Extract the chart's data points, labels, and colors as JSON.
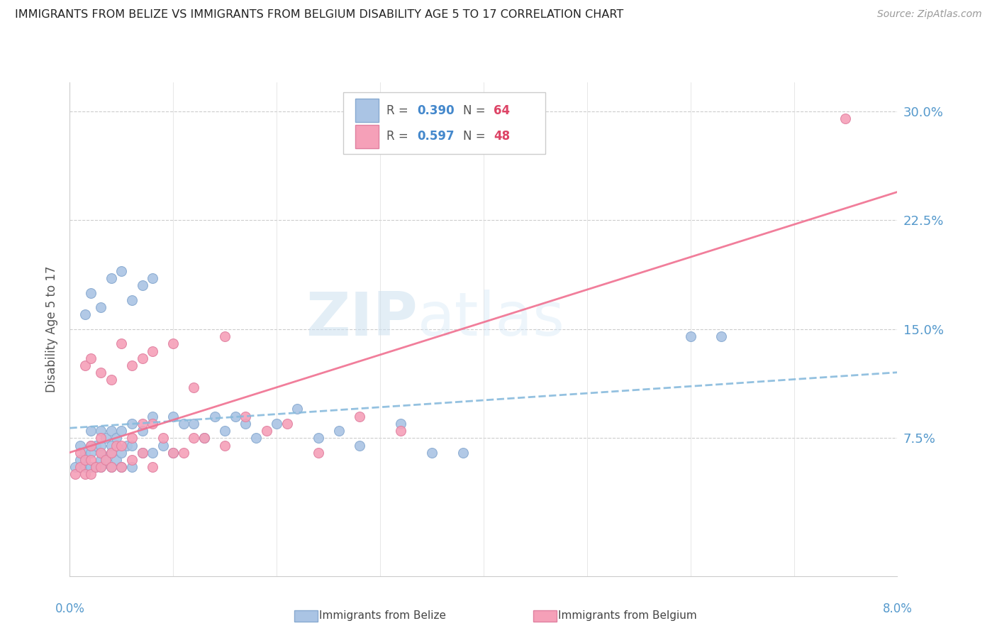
{
  "title": "IMMIGRANTS FROM BELIZE VS IMMIGRANTS FROM BELGIUM DISABILITY AGE 5 TO 17 CORRELATION CHART",
  "source": "Source: ZipAtlas.com",
  "ylabel": "Disability Age 5 to 17",
  "xmin": 0.0,
  "xmax": 0.08,
  "ymin": -0.02,
  "ymax": 0.32,
  "belize_color": "#aac4e4",
  "belgium_color": "#f5a0b8",
  "belize_line_color": "#88bbdd",
  "belgium_line_color": "#f07090",
  "belize_R": 0.39,
  "belize_N": 64,
  "belgium_R": 0.597,
  "belgium_N": 48,
  "legend_R_color": "#4488cc",
  "legend_N_color": "#dd4466",
  "yticks": [
    0.0,
    0.075,
    0.15,
    0.225,
    0.3
  ],
  "yticklabels": [
    "",
    "7.5%",
    "15.0%",
    "22.5%",
    "30.0%"
  ],
  "xtick_labels_pos": [
    0.0,
    0.08
  ],
  "xtick_labels": [
    "0.0%",
    "8.0%"
  ],
  "belize_x": [
    0.0005,
    0.001,
    0.001,
    0.0015,
    0.0015,
    0.002,
    0.002,
    0.002,
    0.002,
    0.0025,
    0.0025,
    0.003,
    0.003,
    0.003,
    0.003,
    0.003,
    0.0035,
    0.0035,
    0.004,
    0.004,
    0.004,
    0.004,
    0.0045,
    0.0045,
    0.005,
    0.005,
    0.005,
    0.0055,
    0.006,
    0.006,
    0.006,
    0.007,
    0.007,
    0.008,
    0.008,
    0.009,
    0.01,
    0.01,
    0.011,
    0.012,
    0.013,
    0.014,
    0.015,
    0.016,
    0.017,
    0.018,
    0.02,
    0.022,
    0.024,
    0.026,
    0.028,
    0.032,
    0.035,
    0.038,
    0.0015,
    0.002,
    0.003,
    0.004,
    0.005,
    0.006,
    0.007,
    0.008,
    0.06,
    0.063
  ],
  "belize_y": [
    0.055,
    0.06,
    0.07,
    0.055,
    0.065,
    0.055,
    0.065,
    0.07,
    0.08,
    0.055,
    0.07,
    0.055,
    0.06,
    0.065,
    0.07,
    0.08,
    0.06,
    0.075,
    0.055,
    0.065,
    0.07,
    0.08,
    0.06,
    0.075,
    0.055,
    0.065,
    0.08,
    0.07,
    0.055,
    0.07,
    0.085,
    0.065,
    0.08,
    0.065,
    0.09,
    0.07,
    0.065,
    0.09,
    0.085,
    0.085,
    0.075,
    0.09,
    0.08,
    0.09,
    0.085,
    0.075,
    0.085,
    0.095,
    0.075,
    0.08,
    0.07,
    0.085,
    0.065,
    0.065,
    0.16,
    0.175,
    0.165,
    0.185,
    0.19,
    0.17,
    0.18,
    0.185,
    0.145,
    0.145
  ],
  "belgium_x": [
    0.0005,
    0.001,
    0.001,
    0.0015,
    0.0015,
    0.002,
    0.002,
    0.002,
    0.0025,
    0.003,
    0.003,
    0.003,
    0.0035,
    0.004,
    0.004,
    0.0045,
    0.005,
    0.005,
    0.006,
    0.006,
    0.007,
    0.007,
    0.008,
    0.008,
    0.009,
    0.01,
    0.011,
    0.012,
    0.013,
    0.015,
    0.017,
    0.019,
    0.021,
    0.024,
    0.028,
    0.032,
    0.0015,
    0.002,
    0.003,
    0.004,
    0.005,
    0.006,
    0.007,
    0.008,
    0.01,
    0.012,
    0.015,
    0.075
  ],
  "belgium_y": [
    0.05,
    0.055,
    0.065,
    0.05,
    0.06,
    0.05,
    0.06,
    0.07,
    0.055,
    0.055,
    0.065,
    0.075,
    0.06,
    0.055,
    0.065,
    0.07,
    0.055,
    0.07,
    0.06,
    0.075,
    0.065,
    0.085,
    0.055,
    0.085,
    0.075,
    0.065,
    0.065,
    0.075,
    0.075,
    0.07,
    0.09,
    0.08,
    0.085,
    0.065,
    0.09,
    0.08,
    0.125,
    0.13,
    0.12,
    0.115,
    0.14,
    0.125,
    0.13,
    0.135,
    0.14,
    0.11,
    0.145,
    0.295
  ]
}
